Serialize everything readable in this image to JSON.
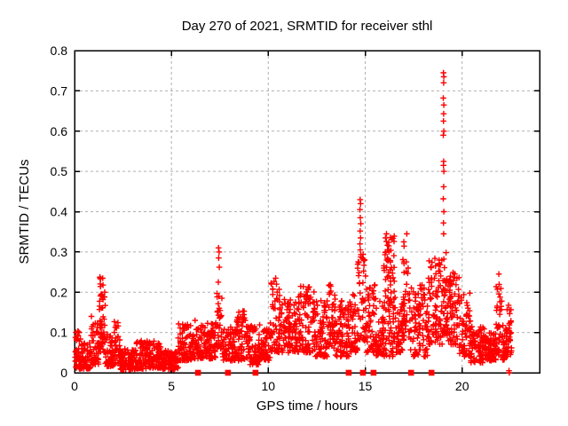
{
  "chart_data": {
    "type": "scatter",
    "title": "Day 270 of 2021, SRMTID for receiver sthl",
    "xlabel": "GPS time / hours",
    "ylabel": "SRMTID / TECUs",
    "xlim": [
      0,
      24
    ],
    "ylim": [
      0,
      0.8
    ],
    "xticks": [
      "0",
      "5",
      "10",
      "15",
      "20"
    ],
    "yticks": [
      "0",
      "0.1",
      "0.2",
      "0.3",
      "0.4",
      "0.5",
      "0.6",
      "0.7",
      "0.8"
    ],
    "grid": true,
    "legend": "none",
    "marker": {
      "shape": "plus",
      "color": "#ff0000",
      "size": 6.6,
      "stroke_width": 1.4
    },
    "frame_color": "#000000",
    "grid_color": "#b0b0b0",
    "seed": 270,
    "series": [
      {
        "name": "srmtid-scatter",
        "note": "dense plus-marker scatter; bands are [hour_start, hour_end, y_min, y_max, n_points, low_bias_exponent] envelopes read from the plot",
        "bands": [
          [
            0.02,
            0.35,
            0.01,
            0.105,
            48,
            1.6
          ],
          [
            0.35,
            0.85,
            0.01,
            0.08,
            60,
            1.8
          ],
          [
            0.85,
            1.25,
            0.02,
            0.125,
            48,
            1.6
          ],
          [
            1.28,
            1.58,
            0.05,
            0.24,
            55,
            1.3
          ],
          [
            1.58,
            2.05,
            0.015,
            0.1,
            55,
            1.8
          ],
          [
            2.05,
            2.35,
            0.02,
            0.135,
            35,
            1.6
          ],
          [
            2.35,
            3.2,
            0.008,
            0.06,
            95,
            1.5
          ],
          [
            3.2,
            3.8,
            0.01,
            0.08,
            70,
            1.6
          ],
          [
            3.8,
            4.5,
            0.012,
            0.08,
            78,
            1.6
          ],
          [
            4.5,
            5.35,
            0.008,
            0.055,
            88,
            1.4
          ],
          [
            5.35,
            6.1,
            0.03,
            0.125,
            80,
            1.6
          ],
          [
            6.1,
            7.3,
            0.035,
            0.13,
            125,
            1.5
          ],
          [
            7.32,
            7.62,
            0.06,
            0.2,
            32,
            1.4
          ],
          [
            7.62,
            8.35,
            0.03,
            0.12,
            78,
            1.5
          ],
          [
            8.35,
            8.85,
            0.03,
            0.155,
            55,
            1.5
          ],
          [
            8.85,
            9.6,
            0.02,
            0.12,
            80,
            1.5
          ],
          [
            9.6,
            10.1,
            0.03,
            0.11,
            55,
            1.4
          ],
          [
            10.1,
            10.65,
            0.05,
            0.23,
            60,
            1.7
          ],
          [
            10.65,
            11.4,
            0.05,
            0.185,
            85,
            1.4
          ],
          [
            11.4,
            12.4,
            0.05,
            0.215,
            108,
            1.5
          ],
          [
            12.4,
            13.05,
            0.04,
            0.18,
            70,
            1.5
          ],
          [
            13.05,
            13.45,
            0.06,
            0.22,
            45,
            1.5
          ],
          [
            13.45,
            14.2,
            0.04,
            0.185,
            80,
            1.5
          ],
          [
            14.2,
            14.6,
            0.05,
            0.2,
            45,
            1.5
          ],
          [
            14.6,
            15.05,
            0.08,
            0.3,
            48,
            1.6
          ],
          [
            15.05,
            15.55,
            0.05,
            0.22,
            55,
            1.6
          ],
          [
            15.55,
            15.95,
            0.04,
            0.18,
            45,
            1.5
          ],
          [
            15.95,
            16.6,
            0.13,
            0.34,
            68,
            1.1
          ],
          [
            15.95,
            16.6,
            0.04,
            0.14,
            35,
            1.3
          ],
          [
            16.6,
            16.95,
            0.05,
            0.18,
            40,
            1.5
          ],
          [
            16.9,
            17.3,
            0.08,
            0.33,
            45,
            1.5
          ],
          [
            17.3,
            18.25,
            0.04,
            0.22,
            90,
            1.6
          ],
          [
            18.25,
            19.0,
            0.07,
            0.285,
            95,
            1.3
          ],
          [
            19.0,
            19.2,
            0.09,
            0.3,
            30,
            1.3
          ],
          [
            19.2,
            19.85,
            0.07,
            0.25,
            78,
            1.4
          ],
          [
            19.85,
            20.45,
            0.04,
            0.2,
            65,
            1.5
          ],
          [
            20.45,
            21.25,
            0.025,
            0.12,
            88,
            1.4
          ],
          [
            21.25,
            21.75,
            0.03,
            0.1,
            55,
            1.4
          ],
          [
            21.75,
            22.05,
            0.04,
            0.23,
            35,
            1.6
          ],
          [
            22.05,
            22.3,
            0.03,
            0.12,
            32,
            1.4
          ],
          [
            22.3,
            22.55,
            0.04,
            0.17,
            32,
            1.2
          ]
        ],
        "points": [
          [
            0.87,
            0.14
          ],
          [
            7.43,
            0.31
          ],
          [
            7.46,
            0.3
          ],
          [
            7.44,
            0.285
          ],
          [
            7.47,
            0.262
          ],
          [
            7.42,
            0.225
          ],
          [
            7.45,
            0.19
          ],
          [
            10.38,
            0.235
          ],
          [
            10.42,
            0.22
          ],
          [
            13.2,
            0.215
          ],
          [
            14.74,
            0.43
          ],
          [
            14.76,
            0.42
          ],
          [
            14.73,
            0.405
          ],
          [
            14.75,
            0.385
          ],
          [
            14.77,
            0.37
          ],
          [
            14.74,
            0.352
          ],
          [
            14.76,
            0.335
          ],
          [
            14.73,
            0.32
          ],
          [
            14.75,
            0.305
          ],
          [
            16.05,
            0.335
          ],
          [
            16.1,
            0.345
          ],
          [
            17.15,
            0.345
          ],
          [
            19.04,
            0.745
          ],
          [
            19.06,
            0.735
          ],
          [
            19.05,
            0.72
          ],
          [
            19.03,
            0.682
          ],
          [
            19.06,
            0.665
          ],
          [
            19.05,
            0.643
          ],
          [
            19.04,
            0.625
          ],
          [
            19.06,
            0.6
          ],
          [
            19.03,
            0.59
          ],
          [
            19.05,
            0.525
          ],
          [
            19.04,
            0.515
          ],
          [
            19.06,
            0.5
          ],
          [
            19.05,
            0.462
          ],
          [
            19.03,
            0.432
          ],
          [
            19.06,
            0.4
          ],
          [
            19.04,
            0.372
          ],
          [
            19.05,
            0.345
          ],
          [
            21.9,
            0.245
          ],
          [
            22.42,
            0.005
          ],
          [
            22.44,
            0.0
          ]
        ]
      },
      {
        "name": "flag-squares",
        "note": "filled square markers sitting on the x-axis (y = 0)",
        "marker": "filled-square",
        "color": "#ff0000",
        "y": 0,
        "x": [
          6.37,
          7.92,
          9.34,
          14.15,
          14.88,
          15.43,
          17.37,
          18.42
        ]
      }
    ]
  }
}
